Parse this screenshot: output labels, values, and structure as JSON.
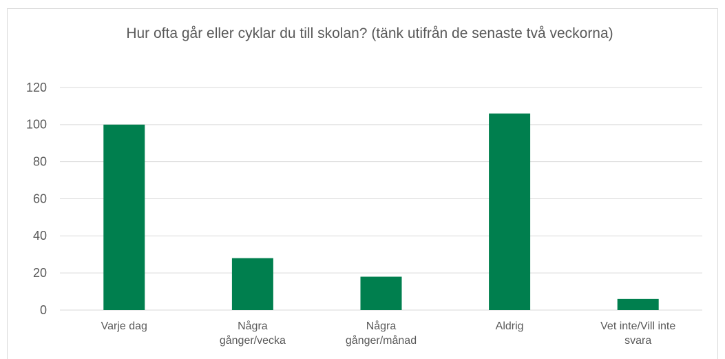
{
  "chart_data": {
    "type": "bar",
    "title": "Hur ofta går eller cyklar du till skolan? (tänk utifrån de senaste två veckorna)",
    "categories": [
      "Varje dag",
      "Några gånger/vecka",
      "Några gånger/månad",
      "Aldrig",
      "Vet inte/Vill inte svara"
    ],
    "values": [
      100,
      28,
      18,
      106,
      6
    ],
    "color": "#007f4e",
    "ylim": [
      0,
      120
    ],
    "yticks": [
      0,
      20,
      40,
      60,
      80,
      100,
      120
    ],
    "grid": true
  }
}
